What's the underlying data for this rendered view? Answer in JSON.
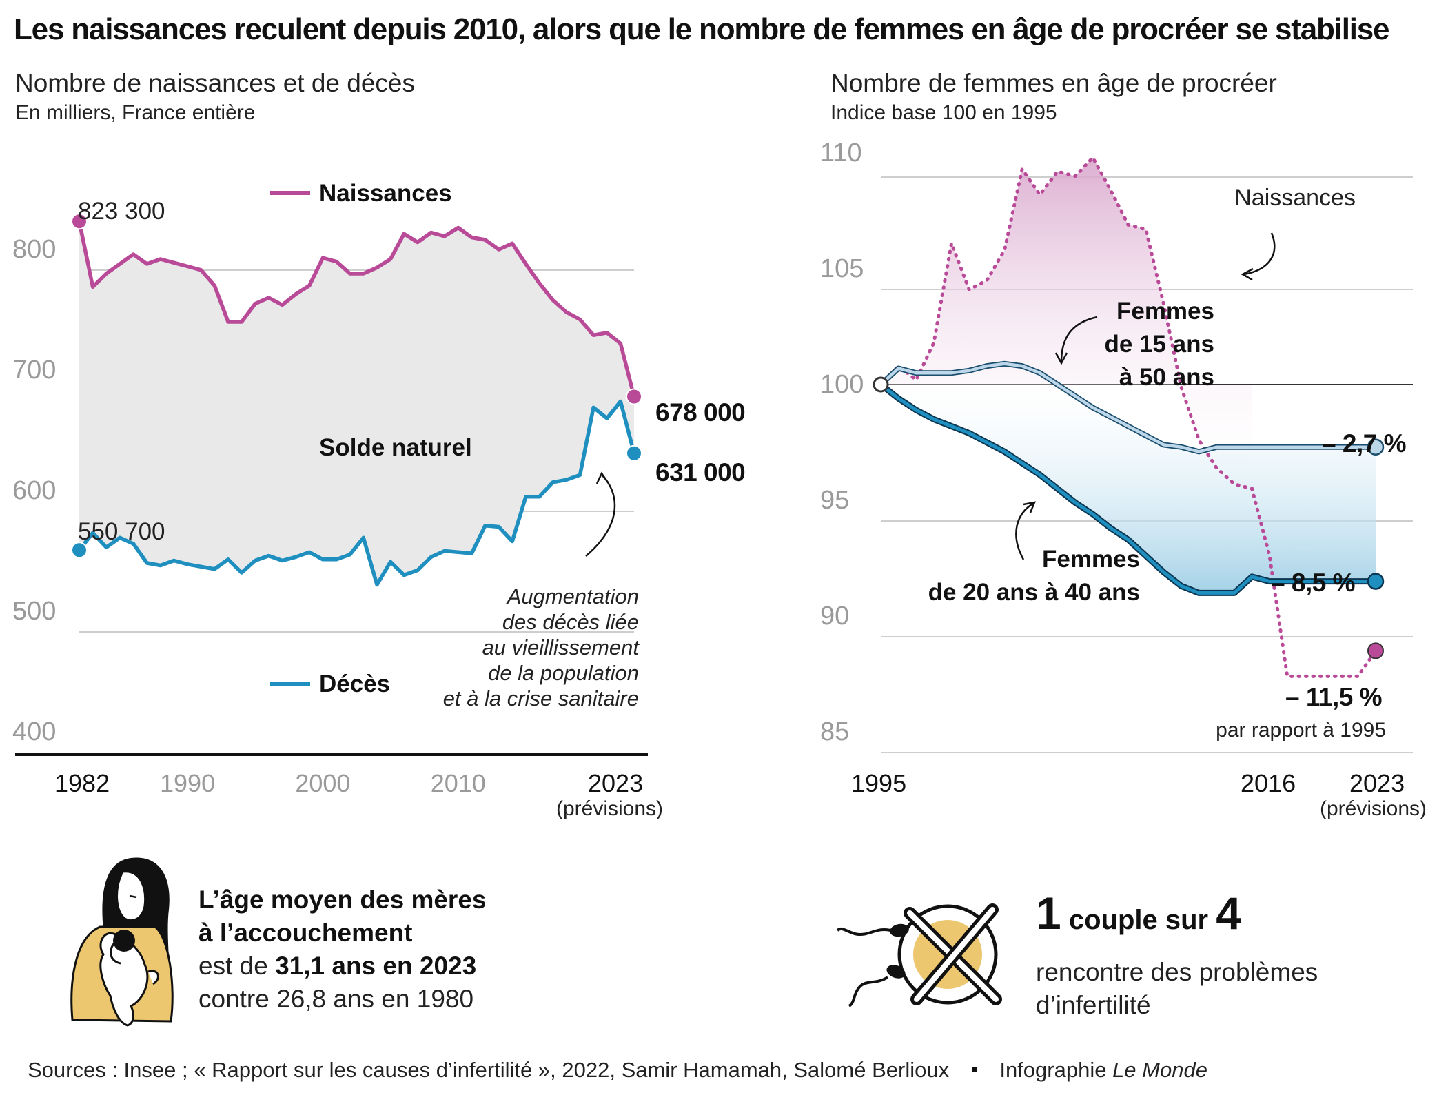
{
  "title": "Les naissances reculent depuis 2010, alors que le nombre de femmes en âge de procréer se stabilise",
  "left_panel": {
    "title": "Nombre de naissances et de décès",
    "subtitle": "En milliers, France entière",
    "x_first": "1982",
    "x_last": "2023",
    "x_last_note": "(prévisions)",
    "legend_births": "Naissances",
    "legend_deaths": "Décès",
    "label_balance": "Solde naturel",
    "label_start_births": "823 300",
    "label_start_deaths": "550 700",
    "label_end_births": "678 000",
    "label_end_deaths": "631 000",
    "annotation": [
      "Augmentation",
      "des décès liée",
      "au vieillissement",
      "de la population",
      "et à la crise sanitaire"
    ]
  },
  "right_panel": {
    "title": "Nombre de femmes en âge de procréer",
    "subtitle": "Indice base 100 en 1995",
    "x_first": "1995",
    "x_mid": "2016",
    "x_last": "2023",
    "x_last_note": "(prévisions)",
    "label_births": "Naissances",
    "label_15_50": [
      "Femmes",
      "de 15 ans",
      "à 50 ans"
    ],
    "label_20_40": [
      "Femmes",
      "de 20 ans à 40 ans"
    ],
    "end_15_50": "– 2,7 %",
    "end_20_40": "– 8,5 %",
    "end_births": "– 11,5 %",
    "end_note": "par rapport à 1995"
  },
  "info_left": {
    "line1": "L’âge moyen des mères",
    "line2": "à l’accouchement",
    "line3_pre": "est de ",
    "line3_bold": "31,1 ans en 2023",
    "line4": "contre 26,8 ans en 1980"
  },
  "info_right": {
    "num1": "1",
    "text1": " couple sur ",
    "num2": "4",
    "line2": "rencontre des problèmes",
    "line3": "d’infertilité"
  },
  "sources": "Sources : Insee ; « Rapport sur les causes d’infertilité », 2022, Samir Hamamah, Salomé Berlioux",
  "credit_pre": "Infographie ",
  "credit_italic": "Le Monde",
  "colors": {
    "births": "#b94a98",
    "deaths": "#1e8fbf",
    "women_15_50": "#bcd6ea",
    "fill_gray": "#e8e8e8",
    "grid": "#bdbdbd",
    "axis_gray": "#9a9a9a"
  },
  "chart_data": [
    {
      "type": "line",
      "title": "Nombre de naissances et de décès",
      "ylabel": "En milliers, France entière",
      "ylim": [
        400,
        850
      ],
      "yticks": [
        400,
        500,
        600,
        700,
        800
      ],
      "xticks": [
        1982,
        1990,
        2000,
        2010,
        2023
      ],
      "x": [
        1982,
        1983,
        1984,
        1985,
        1986,
        1987,
        1988,
        1989,
        1990,
        1991,
        1992,
        1993,
        1994,
        1995,
        1996,
        1997,
        1998,
        1999,
        2000,
        2001,
        2002,
        2003,
        2004,
        2005,
        2006,
        2007,
        2008,
        2009,
        2010,
        2011,
        2012,
        2013,
        2014,
        2015,
        2016,
        2017,
        2018,
        2019,
        2020,
        2021,
        2022,
        2023
      ],
      "series": [
        {
          "name": "Naissances",
          "values": [
            823.3,
            769,
            780,
            788,
            796,
            788,
            792,
            789,
            786,
            783,
            770,
            740,
            740,
            755,
            760,
            754,
            763,
            770,
            793,
            790,
            780,
            780,
            785,
            792,
            813,
            806,
            814,
            811,
            818,
            810,
            808,
            800,
            805,
            788,
            772,
            758,
            748,
            742,
            729,
            731,
            722,
            678
          ]
        },
        {
          "name": "Décès",
          "values": [
            550.7,
            565,
            553,
            561,
            556,
            540,
            538,
            542,
            539,
            537,
            535,
            543,
            532,
            542,
            546,
            542,
            545,
            549,
            543,
            543,
            547,
            561,
            522,
            541,
            530,
            534,
            545,
            550,
            549,
            548,
            571,
            570,
            558,
            595,
            595,
            607,
            609,
            613,
            669,
            660,
            674,
            631
          ]
        }
      ]
    },
    {
      "type": "line",
      "title": "Nombre de femmes en âge de procréer",
      "ylabel": "Indice base 100 en 1995",
      "ylim": [
        85,
        110
      ],
      "yticks": [
        85,
        90,
        95,
        100,
        105,
        110
      ],
      "xticks": [
        1995,
        2016,
        2023
      ],
      "x": [
        1995,
        1996,
        1997,
        1998,
        1999,
        2000,
        2001,
        2002,
        2003,
        2004,
        2005,
        2006,
        2007,
        2008,
        2009,
        2010,
        2011,
        2012,
        2013,
        2014,
        2015,
        2016,
        2017,
        2018,
        2019,
        2020,
        2021,
        2022,
        2023
      ],
      "series": [
        {
          "name": "Naissances",
          "values": [
            100,
            100.8,
            100.2,
            101.8,
            106.1,
            104.1,
            104.5,
            105.8,
            109.3,
            108.2,
            109.2,
            109.0,
            109.8,
            108.4,
            106.9,
            106.7,
            103.5,
            99.9,
            97.6,
            96.4,
            95.7,
            95.5,
            92.6,
            87.4,
            87.4,
            87.4,
            87.4,
            87.4,
            88.5
          ]
        },
        {
          "name": "Femmes de 15 ans à 50 ans",
          "values": [
            100,
            100.7,
            100.5,
            100.5,
            100.5,
            100.6,
            100.8,
            100.9,
            100.8,
            100.5,
            100.0,
            99.5,
            99.0,
            98.6,
            98.2,
            97.8,
            97.4,
            97.3,
            97.1,
            97.3,
            97.3,
            97.3,
            97.3,
            97.3,
            97.3,
            97.3,
            97.3,
            97.3,
            97.3
          ]
        },
        {
          "name": "Femmes de 20 ans à 40 ans",
          "values": [
            100,
            99.4,
            98.9,
            98.5,
            98.2,
            97.9,
            97.5,
            97.1,
            96.6,
            96.1,
            95.5,
            94.9,
            94.4,
            93.8,
            93.3,
            92.6,
            91.9,
            91.3,
            91.0,
            91.0,
            91.0,
            91.7,
            91.5,
            91.5,
            91.5,
            91.5,
            91.5,
            91.5,
            91.5
          ]
        }
      ]
    }
  ]
}
